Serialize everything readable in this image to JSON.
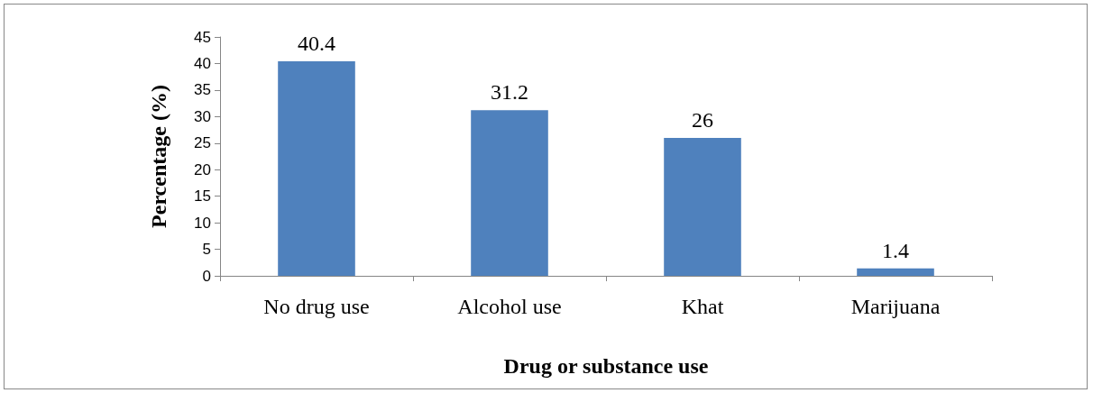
{
  "chart_data": {
    "type": "bar",
    "xlabel": "Drug or substance use",
    "ylabel": "Percentage (%)",
    "categories": [
      "No drug use",
      "Alcohol use",
      "Khat",
      "Marijuana"
    ],
    "values": [
      40.4,
      31.2,
      26,
      1.4
    ],
    "color": "#4f81bd",
    "ylim": [
      0,
      45
    ],
    "yticks": [
      0,
      5,
      10,
      15,
      20,
      25,
      30,
      35,
      40,
      45
    ],
    "grid": false,
    "data_labels": true
  }
}
